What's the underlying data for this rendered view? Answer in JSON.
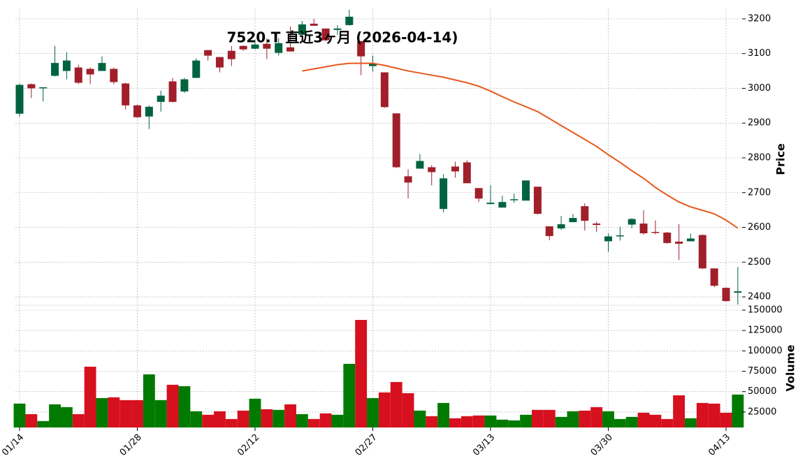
{
  "chart_data": {
    "type": "candlestick",
    "title": "7520.T  直近3ヶ月 (2026-04-14)",
    "ylabel": "Price",
    "ylim": [
      2376,
      3230
    ],
    "yticks": [
      2400,
      2500,
      2600,
      2700,
      2800,
      2900,
      3000,
      3100,
      3200
    ],
    "grid": true,
    "up_color": "#006340",
    "down_color": "#a01f2a",
    "categories": [
      "01/14",
      null,
      null,
      null,
      null,
      null,
      null,
      null,
      null,
      null,
      "01/28",
      null,
      null,
      null,
      null,
      null,
      null,
      null,
      null,
      null,
      "02/12",
      null,
      null,
      null,
      null,
      null,
      null,
      null,
      null,
      null,
      "02/27",
      null,
      null,
      null,
      null,
      null,
      null,
      null,
      null,
      null,
      "03/13",
      null,
      null,
      null,
      null,
      null,
      null,
      null,
      null,
      null,
      "03/30",
      null,
      null,
      null,
      null,
      null,
      null,
      null,
      null,
      null,
      "04/13",
      null
    ],
    "open": [
      2927,
      3012,
      3001,
      3036,
      3050,
      3060,
      3056,
      3050,
      3056,
      3014,
      2951,
      2919,
      2961,
      3020,
      2991,
      3030,
      3110,
      3090,
      3108,
      3122,
      3114,
      3128,
      3102,
      3118,
      3154,
      3186,
      3172,
      3168,
      3182,
      3136,
      3064,
      3046,
      2928,
      2747,
      2769,
      2773,
      2653,
      2775,
      2787,
      2713,
      2667,
      2657,
      2679,
      2677,
      2717,
      2603,
      2597,
      2615,
      2661,
      2611,
      2560,
      2574,
      2608,
      2611,
      2587,
      2585,
      2559,
      2560,
      2578,
      2482,
      2426,
      2412
    ],
    "high": [
      3014,
      3014,
      3003,
      3122,
      3104,
      3068,
      3060,
      3092,
      3060,
      3016,
      2953,
      2951,
      2993,
      3030,
      3030,
      3086,
      3110,
      3090,
      3122,
      3124,
      3140,
      3144,
      3144,
      3178,
      3194,
      3200,
      3172,
      3182,
      3226,
      3136,
      3094,
      3046,
      2928,
      2767,
      2811,
      2779,
      2753,
      2789,
      2793,
      2713,
      2721,
      2691,
      2697,
      2735,
      2717,
      2603,
      2633,
      2639,
      2669,
      2617,
      2582,
      2602,
      2627,
      2649,
      2620,
      2587,
      2609,
      2582,
      2580,
      2482,
      2428,
      2486
    ],
    "low": [
      2918,
      2972,
      2962,
      3034,
      3026,
      3012,
      3012,
      3050,
      3012,
      2939,
      2915,
      2883,
      2933,
      2959,
      2987,
      3030,
      3080,
      3046,
      3064,
      3108,
      3112,
      3084,
      3094,
      3106,
      3154,
      3180,
      3136,
      3154,
      3180,
      3038,
      3048,
      2944,
      2771,
      2683,
      2769,
      2721,
      2643,
      2743,
      2727,
      2673,
      2667,
      2657,
      2671,
      2677,
      2637,
      2563,
      2593,
      2615,
      2591,
      2587,
      2530,
      2562,
      2598,
      2579,
      2580,
      2553,
      2506,
      2560,
      2480,
      2428,
      2386,
      2378
    ],
    "close": [
      3010,
      3000,
      3003,
      3073,
      3080,
      3016,
      3040,
      3073,
      3018,
      2951,
      2917,
      2947,
      2979,
      2961,
      3026,
      3080,
      3094,
      3060,
      3084,
      3112,
      3126,
      3114,
      3130,
      3106,
      3184,
      3180,
      3138,
      3172,
      3206,
      3092,
      3072,
      2946,
      2773,
      2729,
      2791,
      2759,
      2741,
      2761,
      2727,
      2683,
      2671,
      2673,
      2681,
      2735,
      2639,
      2575,
      2609,
      2627,
      2619,
      2607,
      2574,
      2577,
      2624,
      2583,
      2584,
      2555,
      2553,
      2568,
      2482,
      2432,
      2388,
      2416
    ],
    "ma": {
      "color": "#e8581c",
      "values": [
        null,
        null,
        null,
        null,
        null,
        null,
        null,
        null,
        null,
        null,
        null,
        null,
        null,
        null,
        null,
        null,
        null,
        null,
        null,
        null,
        null,
        null,
        null,
        null,
        3050,
        3056,
        3062,
        3068,
        3072,
        3072,
        3072,
        3066,
        3058,
        3050,
        3044,
        3038,
        3032,
        3024,
        3016,
        3006,
        2992,
        2976,
        2961,
        2947,
        2933,
        2913,
        2893,
        2873,
        2853,
        2833,
        2809,
        2787,
        2763,
        2741,
        2715,
        2693,
        2673,
        2659,
        2649,
        2639,
        2621,
        2598
      ]
    },
    "volume": {
      "ylabel": "Volume",
      "ylim": [
        6000,
        156000
      ],
      "yticks": [
        25000,
        50000,
        75000,
        100000,
        125000,
        150000
      ],
      "up_color": "#007a00",
      "down_color": "#d6101e",
      "values": [
        35300,
        22400,
        13900,
        34400,
        31000,
        22400,
        80600,
        42100,
        43000,
        39600,
        39600,
        71200,
        39600,
        58400,
        56700,
        25900,
        21600,
        25900,
        16400,
        26700,
        41300,
        28400,
        27600,
        34400,
        22400,
        16400,
        23300,
        21600,
        84100,
        138000,
        42100,
        49000,
        61800,
        48100,
        26700,
        19900,
        36100,
        17300,
        19900,
        20700,
        20700,
        15600,
        14700,
        21600,
        27600,
        27600,
        19000,
        25900,
        26700,
        31000,
        25900,
        16400,
        19000,
        24100,
        21600,
        16400,
        45500,
        17300,
        36100,
        35300,
        24100,
        46400
      ]
    }
  }
}
